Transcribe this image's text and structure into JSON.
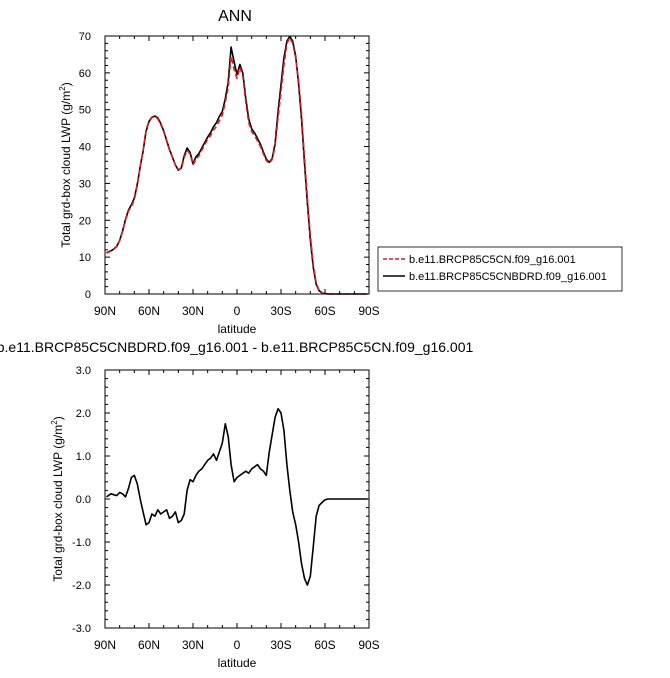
{
  "chart_data": [
    {
      "type": "line",
      "title": "ANN",
      "xlabel": "latitude",
      "ylabel_main": "Total grd-box cloud LWP (g/m",
      "ylabel_sup": "2",
      "ylabel_end": ")",
      "xlim": [
        90,
        -90
      ],
      "ylim": [
        0,
        70
      ],
      "x_ticks": [
        90,
        60,
        30,
        0,
        -30,
        -60,
        -90
      ],
      "x_tick_labels": [
        "90N",
        "60N",
        "30N",
        "0",
        "30S",
        "60S",
        "90S"
      ],
      "y_ticks": [
        0,
        10,
        20,
        30,
        40,
        50,
        60,
        70
      ],
      "y_tick_labels": [
        "0",
        "10",
        "20",
        "30",
        "40",
        "50",
        "60",
        "70"
      ],
      "legend_placement": "right",
      "series": [
        {
          "name": "b.e11.BRCP85C5CN.f09_g16.001",
          "color": "#e41a1c",
          "dash": "dashed",
          "x": [
            89,
            85,
            82,
            80,
            78,
            76,
            74,
            72,
            70,
            68,
            66,
            64,
            62,
            60,
            58,
            56,
            54,
            52,
            50,
            48,
            46,
            44,
            42,
            40,
            38,
            36,
            34,
            32,
            30,
            28,
            26,
            24,
            22,
            20,
            18,
            16,
            14,
            12,
            10,
            8,
            6,
            4,
            2,
            0,
            -2,
            -4,
            -6,
            -8,
            -10,
            -12,
            -14,
            -16,
            -18,
            -20,
            -22,
            -24,
            -26,
            -28,
            -30,
            -32,
            -34,
            -36,
            -38,
            -40,
            -42,
            -44,
            -46,
            -48,
            -50,
            -52,
            -54,
            -56,
            -58,
            -60,
            -62,
            -64,
            -66,
            -68,
            -70,
            -72,
            -74,
            -76,
            -78,
            -80,
            -84,
            -89
          ],
          "y": [
            11.1,
            11.8,
            12.8,
            14.5,
            17.0,
            20.0,
            22.5,
            23.7,
            25.5,
            29.5,
            34.5,
            39.0,
            44.5,
            47.0,
            48.0,
            48.2,
            47.5,
            46.0,
            44.0,
            41.5,
            39.0,
            37.0,
            35.0,
            33.8,
            34.0,
            37.0,
            39.0,
            38.0,
            35.0,
            36.5,
            37.5,
            39.0,
            40.5,
            42.0,
            43.0,
            44.5,
            45.5,
            47.0,
            48.5,
            52.0,
            56.0,
            64.5,
            61.0,
            58.5,
            61.5,
            59.0,
            52.0,
            46.5,
            44.0,
            43.0,
            41.5,
            40.0,
            38.0,
            36.2,
            35.5,
            36.5,
            40.0,
            48.0,
            55.0,
            62.0,
            68.0,
            69.5,
            68.0,
            64.0,
            58.0,
            49.0,
            37.0,
            26.0,
            16.0,
            8.0,
            3.0,
            1.0,
            0.3,
            0.1,
            0.0,
            0.0,
            0.0,
            0.0,
            0.0,
            0.0,
            0.0,
            0.0,
            0.0,
            0.0,
            0.0,
            0.0
          ]
        },
        {
          "name": "b.e11.BRCP85C5CNBDRD.f09_g16.001",
          "color": "#000000",
          "dash": "solid",
          "x": [
            89,
            85,
            82,
            80,
            78,
            76,
            74,
            72,
            70,
            68,
            66,
            64,
            62,
            60,
            58,
            56,
            54,
            52,
            50,
            48,
            46,
            44,
            42,
            40,
            38,
            36,
            34,
            32,
            30,
            28,
            26,
            24,
            22,
            20,
            18,
            16,
            14,
            12,
            10,
            8,
            6,
            4,
            2,
            0,
            -2,
            -4,
            -6,
            -8,
            -10,
            -12,
            -14,
            -16,
            -18,
            -20,
            -22,
            -24,
            -26,
            -28,
            -30,
            -32,
            -34,
            -36,
            -38,
            -40,
            -42,
            -44,
            -46,
            -48,
            -50,
            -52,
            -54,
            -56,
            -58,
            -60,
            -62,
            -64,
            -66,
            -68,
            -70,
            -72,
            -74,
            -76,
            -78,
            -80,
            -84,
            -89
          ],
          "y": [
            11.2,
            11.9,
            12.9,
            14.6,
            17.1,
            20.2,
            22.8,
            24.2,
            26.0,
            29.8,
            34.5,
            38.8,
            44.2,
            46.8,
            47.9,
            48.3,
            47.8,
            46.3,
            44.2,
            41.7,
            39.2,
            37.1,
            35.0,
            33.6,
            34.2,
            37.5,
            39.6,
            38.4,
            35.3,
            37.2,
            38.1,
            39.6,
            41.1,
            42.6,
            43.8,
            45.4,
            46.5,
            48.2,
            49.5,
            53.0,
            57.5,
            67.0,
            63.0,
            59.5,
            62.3,
            59.8,
            53.0,
            47.5,
            44.8,
            43.7,
            42.2,
            40.6,
            38.5,
            36.6,
            35.7,
            36.8,
            40.8,
            49.6,
            56.8,
            64.0,
            68.6,
            69.9,
            68.6,
            64.5,
            57.0,
            47.6,
            35.5,
            24.6,
            14.8,
            7.2,
            2.6,
            0.9,
            0.3,
            0.1,
            0.0,
            0.0,
            0.0,
            0.0,
            0.0,
            0.0,
            0.0,
            0.0,
            0.0,
            0.0,
            0.0,
            0.0
          ]
        }
      ]
    },
    {
      "type": "line",
      "title": "b.e11.BRCP85C5CNBDRD.f09_g16.001 - b.e11.BRCP85C5CN.f09_g16.001",
      "xlabel": "latitude",
      "ylabel_main": "Total grd-box cloud LWP (g/m",
      "ylabel_sup": "2",
      "ylabel_end": ")",
      "xlim": [
        90,
        -90
      ],
      "ylim": [
        -3,
        3
      ],
      "x_ticks": [
        90,
        60,
        30,
        0,
        -30,
        -60,
        -90
      ],
      "x_tick_labels": [
        "90N",
        "60N",
        "30N",
        "0",
        "30S",
        "60S",
        "90S"
      ],
      "y_ticks": [
        -3,
        -2,
        -1,
        0,
        1,
        2,
        3
      ],
      "y_tick_labels": [
        "-3.0",
        "-2.0",
        "-1.0",
        "0.0",
        "1.0",
        "2.0",
        "3.0"
      ],
      "series": [
        {
          "color": "#000000",
          "dash": "solid",
          "x": [
            89,
            86,
            84,
            82,
            80,
            78,
            76,
            74,
            72,
            70,
            68,
            66,
            64,
            62,
            60,
            58,
            56,
            54,
            52,
            50,
            48,
            46,
            44,
            42,
            40,
            38,
            36,
            34,
            32,
            30,
            28,
            26,
            24,
            22,
            20,
            18,
            16,
            14,
            12,
            10,
            8,
            6,
            4,
            2,
            0,
            -2,
            -4,
            -6,
            -8,
            -10,
            -12,
            -14,
            -16,
            -18,
            -20,
            -22,
            -24,
            -26,
            -28,
            -30,
            -32,
            -34,
            -36,
            -38,
            -40,
            -42,
            -44,
            -46,
            -48,
            -50,
            -52,
            -54,
            -56,
            -58,
            -60,
            -62,
            -64,
            -66,
            -68,
            -70,
            -72,
            -74,
            -76,
            -78,
            -80,
            -84,
            -89
          ],
          "y": [
            0.05,
            0.12,
            0.1,
            0.08,
            0.15,
            0.12,
            0.05,
            0.25,
            0.5,
            0.55,
            0.35,
            0.0,
            -0.3,
            -0.6,
            -0.55,
            -0.35,
            -0.4,
            -0.25,
            -0.35,
            -0.3,
            -0.25,
            -0.45,
            -0.4,
            -0.3,
            -0.55,
            -0.5,
            -0.35,
            0.2,
            0.45,
            0.4,
            0.55,
            0.65,
            0.7,
            0.8,
            0.9,
            0.95,
            1.05,
            0.9,
            1.1,
            1.3,
            1.75,
            1.45,
            0.8,
            0.4,
            0.5,
            0.55,
            0.6,
            0.65,
            0.6,
            0.7,
            0.75,
            0.8,
            0.7,
            0.65,
            0.55,
            1.1,
            1.5,
            1.9,
            2.1,
            2.0,
            1.6,
            0.8,
            0.2,
            -0.3,
            -0.6,
            -1.0,
            -1.5,
            -1.85,
            -2.0,
            -1.8,
            -1.1,
            -0.4,
            -0.15,
            -0.08,
            -0.02,
            0.0,
            0.0,
            0.0,
            0.0,
            0.0,
            0.0,
            0.0,
            0.0,
            0.0,
            0.0,
            0.0,
            0.0
          ]
        }
      ]
    }
  ]
}
